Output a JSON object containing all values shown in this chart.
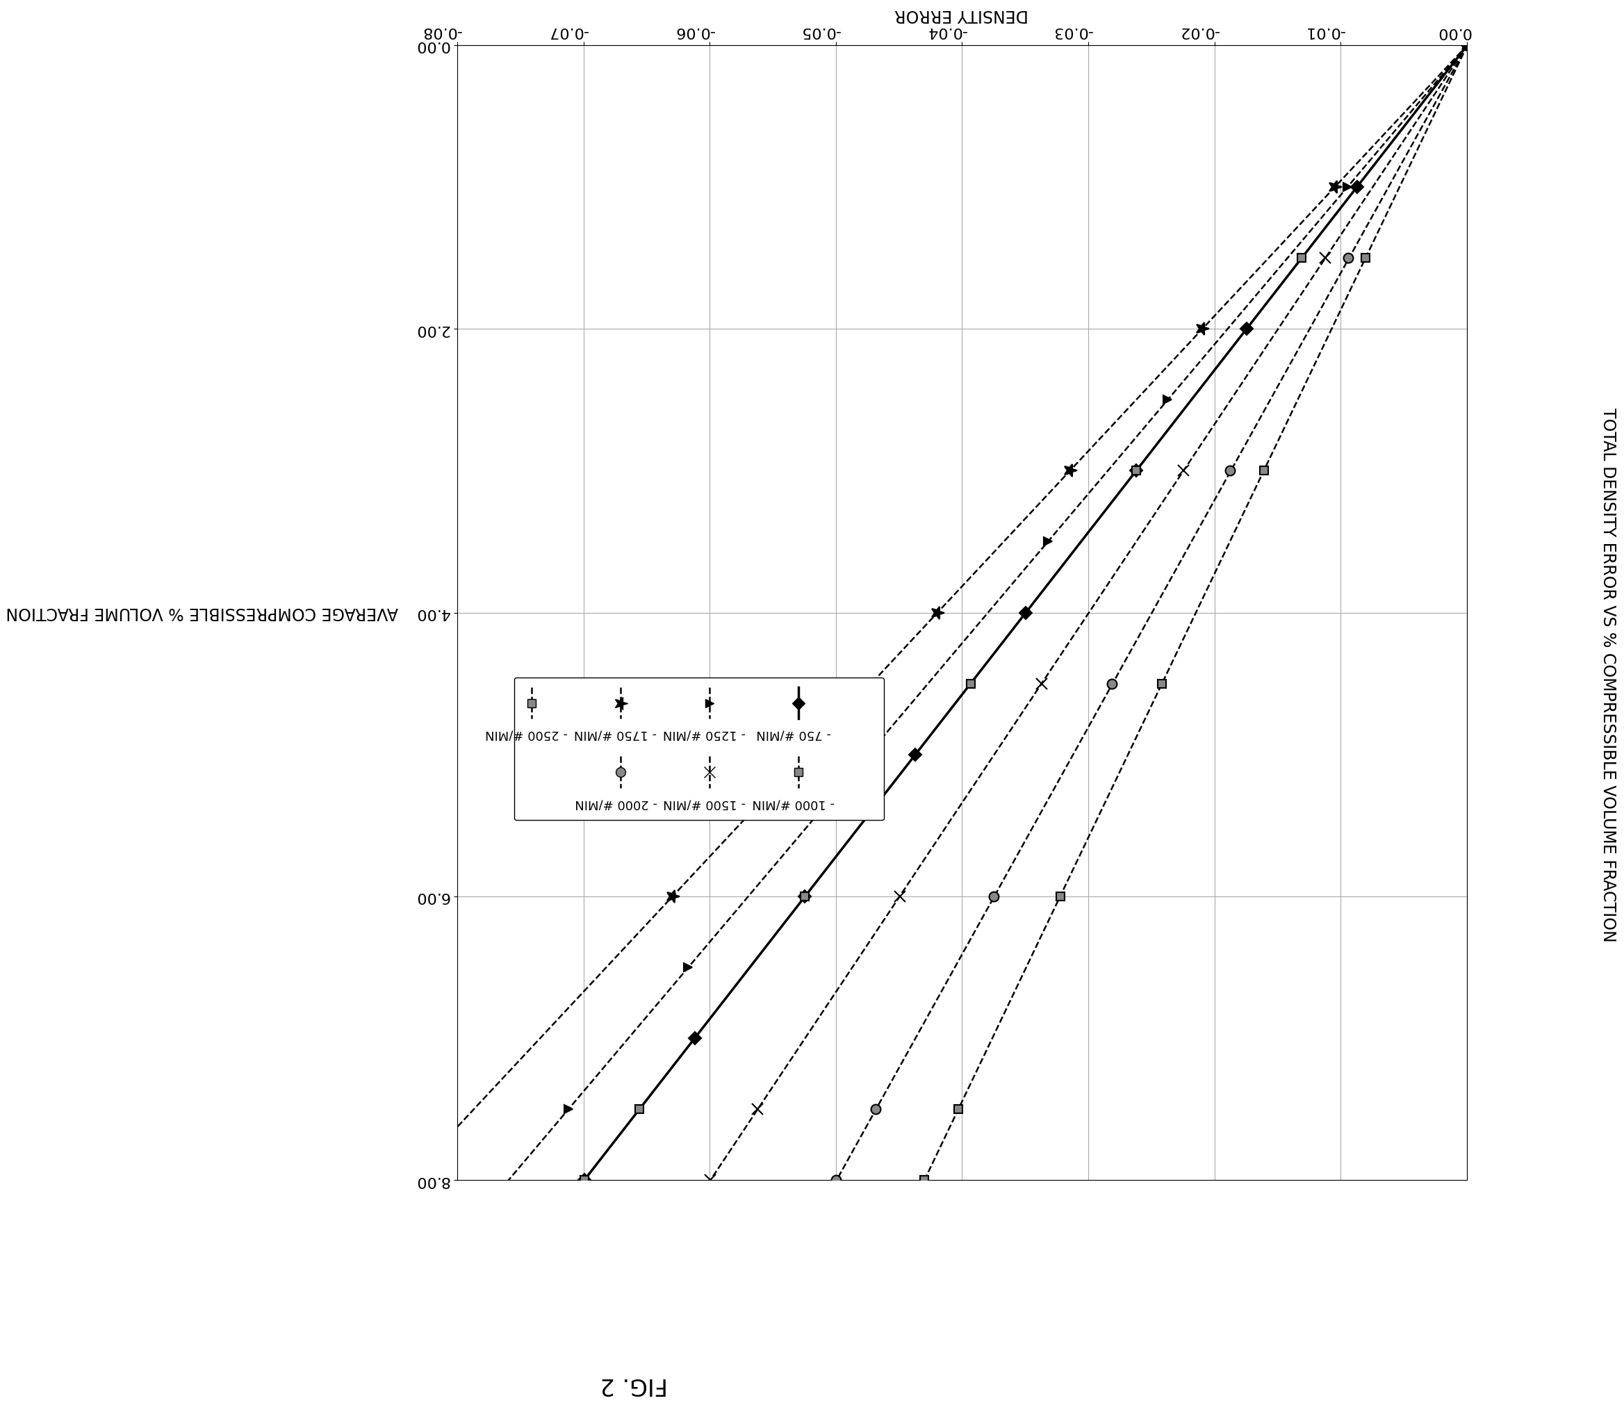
{
  "title": "TOTAL DENSITY ERROR VS % COMPRESSIBLE VOLUME FRACTION",
  "xlabel": "AVERAGE COMPRESSIBLE % VOLUME FRACTION",
  "ylabel": "DENSITY ERROR",
  "fig_label": "FIG. 2",
  "xlim": [
    0.0,
    8.0
  ],
  "ylim": [
    -0.08,
    0.0
  ],
  "xticks": [
    0.0,
    2.0,
    4.0,
    6.0,
    8.0
  ],
  "yticks": [
    0.0,
    -0.01,
    -0.02,
    -0.03,
    -0.04,
    -0.05,
    -0.06,
    -0.07,
    -0.08
  ],
  "slopes": {
    "750 #/MIN": -0.00875,
    "1000 #/MIN": -0.00875,
    "1250 #/MIN": -0.0095,
    "1500 #/MIN": -0.0075,
    "1750 #/MIN": -0.0105,
    "2000 #/MIN": -0.00625,
    "2500 #/MIN": -0.00538
  },
  "solid_series": [
    "750 #/MIN"
  ],
  "styles": {
    "750 #/MIN": {
      "marker": "D",
      "linestyle": "-",
      "linewidth": 2.5,
      "ms": 9,
      "mfc": "#000000"
    },
    "1000 #/MIN": {
      "marker": "s",
      "linestyle": "--",
      "linewidth": 1.8,
      "ms": 9,
      "mfc": "#888888"
    },
    "1250 #/MIN": {
      "marker": "^",
      "linestyle": "--",
      "linewidth": 1.8,
      "ms": 9,
      "mfc": "#000000"
    },
    "1500 #/MIN": {
      "marker": "x",
      "linestyle": "--",
      "linewidth": 1.8,
      "ms": 11,
      "mfc": "#000000"
    },
    "1750 #/MIN": {
      "marker": "*",
      "linestyle": "--",
      "linewidth": 1.8,
      "ms": 14,
      "mfc": "#000000"
    },
    "2000 #/MIN": {
      "marker": "o",
      "linestyle": "--",
      "linewidth": 1.8,
      "ms": 10,
      "mfc": "#888888"
    },
    "2500 #/MIN": {
      "marker": "s",
      "linestyle": "--",
      "linewidth": 1.8,
      "ms": 9,
      "mfc": "#888888"
    }
  },
  "marker_x": {
    "750 #/MIN": [
      0,
      1,
      2,
      3,
      4,
      5,
      6,
      7,
      8
    ],
    "1000 #/MIN": [
      0,
      1.5,
      3.0,
      4.5,
      6.0,
      7.5,
      8.0
    ],
    "1250 #/MIN": [
      0,
      1.0,
      2.5,
      3.5,
      5.0,
      6.5,
      7.5
    ],
    "1500 #/MIN": [
      0,
      1.5,
      3.0,
      4.5,
      6.0,
      7.5,
      8.0
    ],
    "1750 #/MIN": [
      0,
      1.0,
      2.0,
      3.0,
      4.0,
      5.0,
      6.0
    ],
    "2000 #/MIN": [
      0,
      1.5,
      3.0,
      4.5,
      6.0,
      7.5,
      8.0
    ],
    "2500 #/MIN": [
      0,
      1.5,
      3.0,
      4.5,
      6.0,
      7.5,
      8.0
    ]
  },
  "legend_col1": [
    "750 #/MIN",
    "1250 #/MIN",
    "1750 #/MIN",
    "2500 #/MIN"
  ],
  "legend_col2": [
    "1000 #/MIN",
    "1500 #/MIN",
    "2000 #/MIN"
  ],
  "bg_color": "#ffffff",
  "grid_color": "#aaaaaa",
  "draw_order": [
    "750 #/MIN",
    "2500 #/MIN",
    "2000 #/MIN",
    "1500 #/MIN",
    "1000 #/MIN",
    "1250 #/MIN",
    "1750 #/MIN"
  ]
}
